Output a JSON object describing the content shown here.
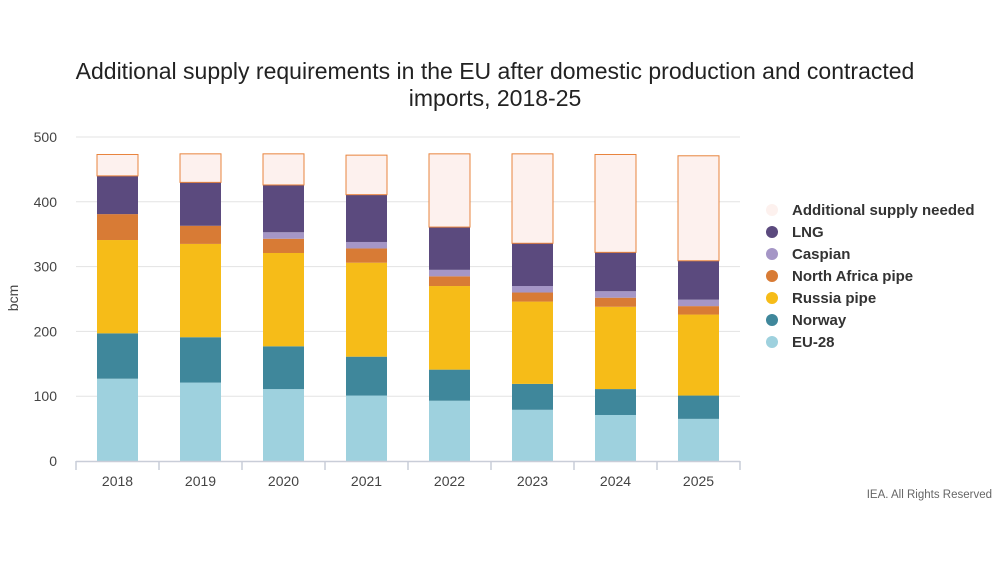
{
  "chart_data": {
    "type": "bar",
    "stacked": true,
    "title_lines": [
      "Additional supply requirements in the EU after domestic production and contracted",
      "imports, 2018-25"
    ],
    "ylabel": "bcm",
    "xlabel": "",
    "ylim": [
      0,
      500
    ],
    "yticks": [
      0,
      100,
      200,
      300,
      400,
      500
    ],
    "grid": true,
    "legend_position": "right",
    "categories": [
      "2018",
      "2019",
      "2020",
      "2021",
      "2022",
      "2023",
      "2024",
      "2025"
    ],
    "series": [
      {
        "name": "EU-28",
        "color": "#9ed1de",
        "values": [
          127,
          121,
          111,
          101,
          93,
          79,
          71,
          65
        ]
      },
      {
        "name": "Norway",
        "color": "#3f879b",
        "values": [
          70,
          70,
          66,
          60,
          48,
          40,
          40,
          36
        ]
      },
      {
        "name": "Russia pipe",
        "color": "#f6bc18",
        "values": [
          144,
          144,
          144,
          145,
          129,
          127,
          127,
          125
        ]
      },
      {
        "name": "North Africa pipe",
        "color": "#d87b35",
        "values": [
          40,
          28,
          22,
          22,
          15,
          14,
          14,
          13
        ]
      },
      {
        "name": "Caspian",
        "color": "#a596c6",
        "values": [
          0,
          0,
          10,
          10,
          10,
          10,
          10,
          10
        ]
      },
      {
        "name": "LNG",
        "color": "#5b4a7e",
        "values": [
          59,
          67,
          73,
          73,
          66,
          66,
          60,
          60
        ]
      },
      {
        "name": "Additional supply needed",
        "color": "#fdf1ee",
        "border": "#e8843d",
        "values": [
          33,
          44,
          48,
          61,
          113,
          138,
          151,
          162
        ]
      }
    ]
  },
  "credit": "IEA. All Rights Reserved"
}
